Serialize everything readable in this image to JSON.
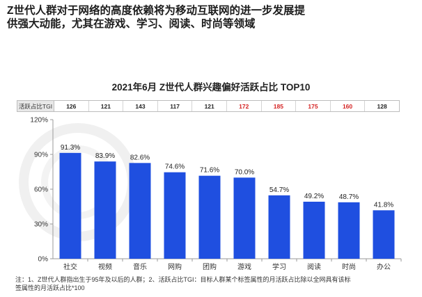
{
  "headline": {
    "line1": "Z世代人群对于网络的高度依赖将为移动互联网的进一步发展提",
    "line2": "供强大动能，尤其在游戏、学习、阅读、时尚等领域"
  },
  "tgi_row": {
    "label": "活跃占比TGI",
    "values": [
      "126",
      "121",
      "143",
      "117",
      "121",
      "172",
      "185",
      "175",
      "160",
      "128"
    ],
    "highlight_color": "#d42222",
    "highlighted": [
      false,
      false,
      false,
      false,
      false,
      true,
      true,
      true,
      true,
      false
    ]
  },
  "chart_data": {
    "type": "bar",
    "title": "2021年6月 Z世代人群兴趣偏好活跃占比 TOP10",
    "categories": [
      "社交",
      "视频",
      "音乐",
      "网购",
      "团购",
      "游戏",
      "学习",
      "阅读",
      "时尚",
      "办公"
    ],
    "values": [
      91.3,
      83.9,
      82.6,
      74.6,
      71.6,
      70.0,
      54.7,
      49.2,
      48.7,
      41.8
    ],
    "value_labels": [
      "91.3%",
      "83.9%",
      "82.6%",
      "74.6%",
      "71.6%",
      "70.0%",
      "54.7%",
      "49.2%",
      "48.7%",
      "41.8%"
    ],
    "ylim": [
      0,
      120
    ],
    "yticks": [
      0,
      30,
      60,
      90,
      120
    ],
    "ytick_labels": [
      "0%",
      "30%",
      "60%",
      "90%",
      "120%"
    ],
    "bar_color": "#1f4fe0",
    "grid": false,
    "legend": "none"
  },
  "notes": {
    "line1": "注：1、Z世代人群指出生于95年及以后的人群；2、活跃占比TGI：目标人群某个标签属性的月活跃占比除以全网具有该标",
    "line2": "签属性的月活跃占比*100"
  }
}
